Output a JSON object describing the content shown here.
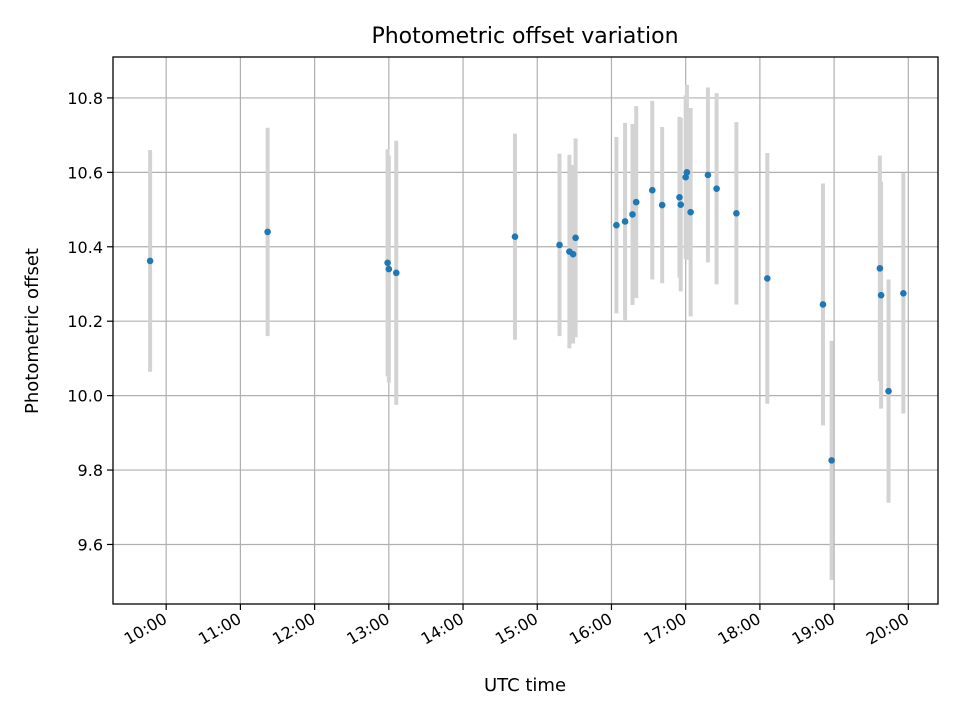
{
  "chart_data": {
    "type": "scatter",
    "title": "Photometric offset variation",
    "xlabel": "UTC time",
    "ylabel": "Photometric offset",
    "x_axis_kind": "time",
    "xlim": [
      "09:17",
      "20:24"
    ],
    "ylim": [
      9.44,
      10.91
    ],
    "xticks": [
      "10:00",
      "11:00",
      "12:00",
      "13:00",
      "14:00",
      "15:00",
      "16:00",
      "17:00",
      "18:00",
      "19:00",
      "20:00"
    ],
    "yticks": [
      "9.6",
      "9.8",
      "10.0",
      "10.2",
      "10.4",
      "10.6",
      "10.8"
    ],
    "grid": true,
    "colors": {
      "points": "#1f77b4",
      "errorbars": "#d3d3d3"
    },
    "series": [
      {
        "points": [
          {
            "x": "09:47",
            "y": 10.362,
            "err": 0.298
          },
          {
            "x": "11:22",
            "y": 10.44,
            "err": 0.28
          },
          {
            "x": "12:59",
            "y": 10.357,
            "err": 0.305
          },
          {
            "x": "13:00",
            "y": 10.34,
            "err": 0.305
          },
          {
            "x": "13:06",
            "y": 10.33,
            "err": 0.355
          },
          {
            "x": "14:42",
            "y": 10.427,
            "err": 0.277
          },
          {
            "x": "15:18",
            "y": 10.405,
            "err": 0.245
          },
          {
            "x": "15:26",
            "y": 10.387,
            "err": 0.26
          },
          {
            "x": "15:29",
            "y": 10.38,
            "err": 0.24
          },
          {
            "x": "15:31",
            "y": 10.424,
            "err": 0.267
          },
          {
            "x": "16:04",
            "y": 10.458,
            "err": 0.237
          },
          {
            "x": "16:11",
            "y": 10.468,
            "err": 0.265
          },
          {
            "x": "16:17",
            "y": 10.487,
            "err": 0.243
          },
          {
            "x": "16:20",
            "y": 10.52,
            "err": 0.258
          },
          {
            "x": "16:33",
            "y": 10.552,
            "err": 0.24
          },
          {
            "x": "16:41",
            "y": 10.512,
            "err": 0.21
          },
          {
            "x": "16:55",
            "y": 10.533,
            "err": 0.216
          },
          {
            "x": "16:56",
            "y": 10.513,
            "err": 0.233
          },
          {
            "x": "17:00",
            "y": 10.587,
            "err": 0.22
          },
          {
            "x": "17:01",
            "y": 10.6,
            "err": 0.235
          },
          {
            "x": "17:04",
            "y": 10.493,
            "err": 0.28
          },
          {
            "x": "17:18",
            "y": 10.593,
            "err": 0.235
          },
          {
            "x": "17:25",
            "y": 10.556,
            "err": 0.257
          },
          {
            "x": "17:41",
            "y": 10.49,
            "err": 0.245
          },
          {
            "x": "18:06",
            "y": 10.315,
            "err": 0.337
          },
          {
            "x": "18:51",
            "y": 10.245,
            "err": 0.325
          },
          {
            "x": "18:58",
            "y": 9.826,
            "err": 0.321
          },
          {
            "x": "19:37",
            "y": 10.342,
            "err": 0.303
          },
          {
            "x": "19:38",
            "y": 10.27,
            "err": 0.305
          },
          {
            "x": "19:44",
            "y": 10.012,
            "err": 0.3
          },
          {
            "x": "19:56",
            "y": 10.275,
            "err": 0.323
          }
        ]
      }
    ]
  }
}
